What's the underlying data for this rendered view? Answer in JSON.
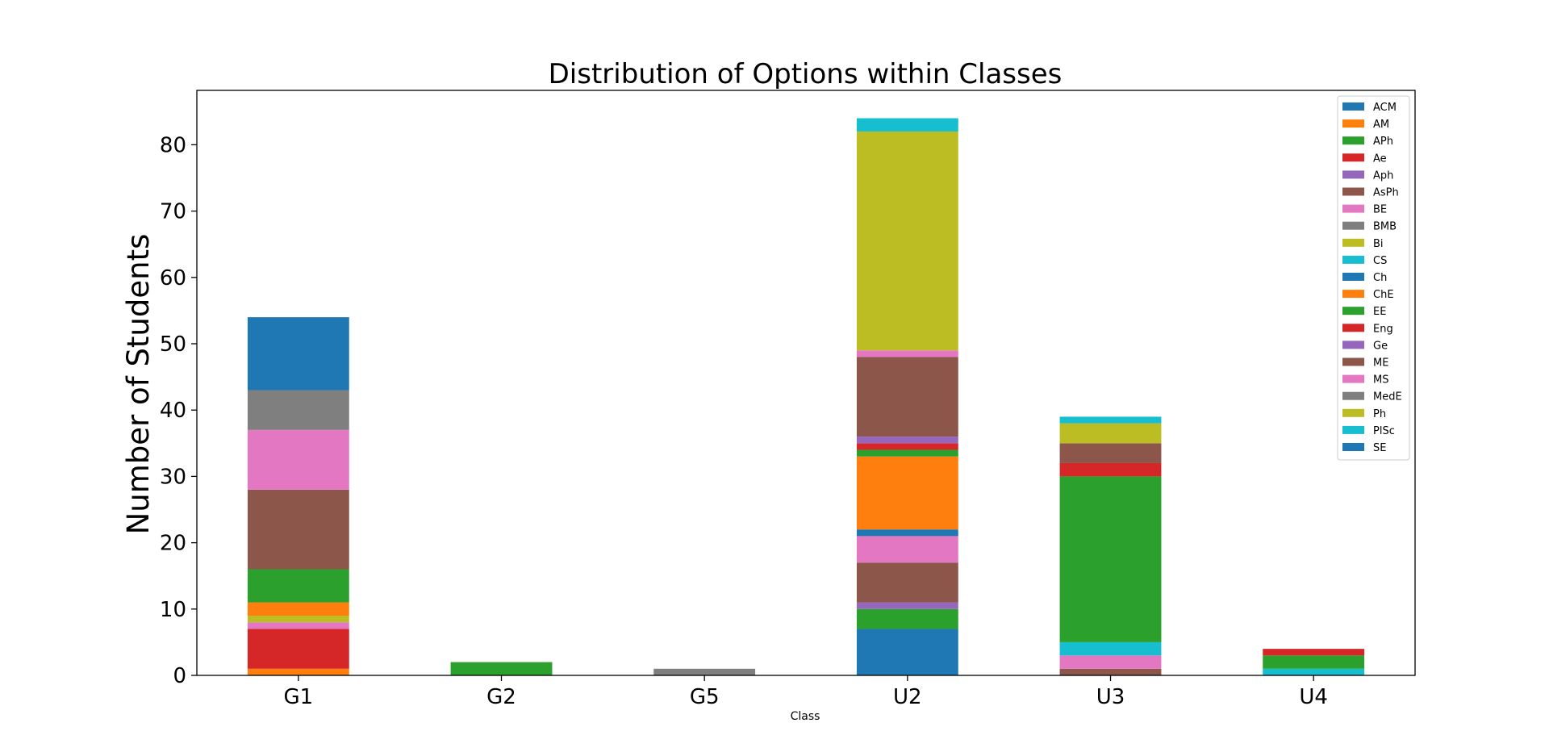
{
  "chart_data": {
    "type": "bar",
    "stacked": true,
    "title": "Distribution of Options within Classes",
    "xlabel": "Class",
    "ylabel": "Number of Students",
    "categories": [
      "G1",
      "G2",
      "G5",
      "U2",
      "U3",
      "U4"
    ],
    "ylim": [
      0,
      88.2
    ],
    "yticks": [
      0,
      10,
      20,
      30,
      40,
      50,
      60,
      70,
      80
    ],
    "grid": false,
    "legend_position": "top-right",
    "series": [
      {
        "name": "ACM",
        "color": "#1f77b4",
        "values": [
          0,
          0,
          0,
          0,
          0,
          0
        ]
      },
      {
        "name": "AM",
        "color": "#ff7f0e",
        "values": [
          1,
          0,
          0,
          0,
          0,
          0
        ]
      },
      {
        "name": "APh",
        "color": "#2ca02c",
        "values": [
          0,
          0,
          0,
          0,
          0,
          0
        ]
      },
      {
        "name": "Ae",
        "color": "#d62728",
        "values": [
          6,
          0,
          0,
          0,
          0,
          0
        ]
      },
      {
        "name": "Aph",
        "color": "#9467bd",
        "values": [
          0,
          0,
          0,
          0,
          0,
          0
        ]
      },
      {
        "name": "AsPh",
        "color": "#8c564b",
        "values": [
          0,
          0,
          0,
          0,
          1,
          0
        ]
      },
      {
        "name": "BE",
        "color": "#e377c2",
        "values": [
          1,
          0,
          0,
          0,
          2,
          0
        ]
      },
      {
        "name": "BMB",
        "color": "#7f7f7f",
        "values": [
          0,
          0,
          0,
          0,
          0,
          0
        ]
      },
      {
        "name": "Bi",
        "color": "#bcbd22",
        "values": [
          1,
          0,
          0,
          0,
          0,
          0
        ]
      },
      {
        "name": "CS",
        "color": "#17becf",
        "values": [
          0,
          0,
          0,
          0,
          2,
          1
        ]
      },
      {
        "name": "Ch",
        "color": "#1f77b4",
        "values": [
          0,
          0,
          0,
          7,
          0,
          0
        ]
      },
      {
        "name": "ChE",
        "color": "#ff7f0e",
        "values": [
          2,
          0,
          0,
          0,
          0,
          0
        ]
      },
      {
        "name": "EE",
        "color": "#2ca02c",
        "values": [
          5,
          2,
          0,
          3,
          25,
          2
        ]
      },
      {
        "name": "Eng",
        "color": "#d62728",
        "values": [
          0,
          0,
          0,
          0,
          0,
          1
        ]
      },
      {
        "name": "Ge",
        "color": "#9467bd",
        "values": [
          0,
          0,
          0,
          1,
          0,
          0
        ]
      },
      {
        "name": "ME",
        "color": "#8c564b",
        "values": [
          12,
          0,
          0,
          6,
          0,
          0
        ]
      },
      {
        "name": "MS",
        "color": "#e377c2",
        "values": [
          9,
          0,
          0,
          4,
          0,
          0
        ]
      },
      {
        "name": "MedE",
        "color": "#7f7f7f",
        "values": [
          6,
          0,
          1,
          0,
          0,
          0
        ]
      },
      {
        "name": "Ph",
        "color": "#bcbd22",
        "values": [
          0,
          0,
          0,
          0,
          0,
          0
        ]
      },
      {
        "name": "PlSc",
        "color": "#17becf",
        "values": [
          0,
          0,
          0,
          0,
          0,
          0
        ]
      },
      {
        "name": "SE",
        "color": "#1f77b4",
        "values": [
          11,
          0,
          0,
          1,
          0,
          0
        ]
      }
    ],
    "extra_segments": {
      "U2": [
        {
          "color": "#ff7f0e",
          "value": 11
        },
        {
          "color": "#2ca02c",
          "value": 1
        },
        {
          "color": "#d62728",
          "value": 1
        },
        {
          "color": "#9467bd",
          "value": 1
        },
        {
          "color": "#8c564b",
          "value": 12
        },
        {
          "color": "#e377c2",
          "value": 1
        },
        {
          "color": "#bcbd22",
          "value": 33
        },
        {
          "color": "#17becf",
          "value": 2
        }
      ],
      "U3": [
        {
          "color": "#d62728",
          "value": 2
        },
        {
          "color": "#8c564b",
          "value": 3
        },
        {
          "color": "#bcbd22",
          "value": 3
        },
        {
          "color": "#17becf",
          "value": 1
        }
      ]
    }
  }
}
